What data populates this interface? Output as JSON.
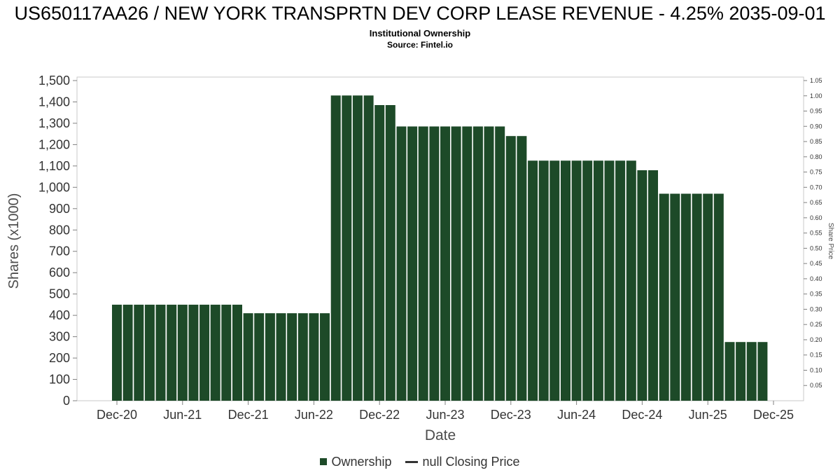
{
  "chart_data": {
    "type": "bar",
    "title": "US650117AA26 / NEW YORK TRANSPRTN DEV CORP LEASE REVENUE - 4.25% 2035-09-01",
    "subtitle": "Institutional Ownership",
    "source": "Source: Fintel.io",
    "xlabel": "Date",
    "ylabel_left": "Shares (x1000)",
    "ylabel_right": "Share Price",
    "bar_color": "#1d4a28",
    "grid": false,
    "legend_position": "bottom",
    "y_left_axis": {
      "min": 0,
      "max": 1500,
      "step": 100,
      "tick_labels": [
        "0",
        "100",
        "200",
        "300",
        "400",
        "500",
        "600",
        "700",
        "800",
        "900",
        "1,000",
        "1,100",
        "1,200",
        "1,300",
        "1,400",
        "1,500"
      ]
    },
    "y_right_axis": {
      "min": 0,
      "max": 1.05,
      "step": 0.05,
      "tick_labels": [
        "0.05",
        "0.10",
        "0.15",
        "0.20",
        "0.25",
        "0.30",
        "0.35",
        "0.40",
        "0.45",
        "0.50",
        "0.55",
        "0.60",
        "0.65",
        "0.70",
        "0.75",
        "0.80",
        "0.85",
        "0.90",
        "0.95",
        "1.00",
        "1.05"
      ]
    },
    "x_tick_labels": [
      "Dec-20",
      "Jun-21",
      "Dec-21",
      "Jun-22",
      "Dec-22",
      "Jun-23",
      "Dec-23",
      "Jun-24",
      "Dec-24",
      "Jun-25",
      "Dec-25"
    ],
    "x_tick_month_indices": [
      0,
      6,
      12,
      18,
      24,
      30,
      36,
      42,
      48,
      54,
      60
    ],
    "categories": [
      "Dec-20",
      "Jan-21",
      "Feb-21",
      "Mar-21",
      "Apr-21",
      "May-21",
      "Jun-21",
      "Jul-21",
      "Aug-21",
      "Sep-21",
      "Oct-21",
      "Nov-21",
      "Dec-21",
      "Jan-22",
      "Feb-22",
      "Mar-22",
      "Apr-22",
      "May-22",
      "Jun-22",
      "Jul-22",
      "Aug-22",
      "Sep-22",
      "Oct-22",
      "Nov-22",
      "Dec-22",
      "Jan-23",
      "Feb-23",
      "Mar-23",
      "Apr-23",
      "May-23",
      "Jun-23",
      "Jul-23",
      "Aug-23",
      "Sep-23",
      "Oct-23",
      "Nov-23",
      "Dec-23",
      "Jan-24",
      "Feb-24",
      "Mar-24",
      "Apr-24",
      "May-24",
      "Jun-24",
      "Jul-24",
      "Aug-24",
      "Sep-24",
      "Oct-24",
      "Nov-24",
      "Dec-24",
      "Jan-25",
      "Feb-25",
      "Mar-25",
      "Apr-25",
      "May-25",
      "Jun-25",
      "Jul-25",
      "Aug-25",
      "Sep-25",
      "Oct-25",
      "Nov-25"
    ],
    "series": [
      {
        "name": "Ownership",
        "type": "bar",
        "values": [
          450,
          450,
          450,
          450,
          450,
          450,
          450,
          450,
          450,
          450,
          450,
          450,
          410,
          410,
          410,
          410,
          410,
          410,
          410,
          410,
          1430,
          1430,
          1430,
          1430,
          1385,
          1385,
          1285,
          1285,
          1285,
          1285,
          1285,
          1285,
          1285,
          1285,
          1285,
          1285,
          1240,
          1240,
          1125,
          1125,
          1125,
          1125,
          1125,
          1125,
          1125,
          1125,
          1125,
          1125,
          1080,
          1080,
          970,
          970,
          970,
          970,
          970,
          970,
          275,
          275,
          275,
          275
        ]
      },
      {
        "name": "null Closing Price",
        "type": "line",
        "values": []
      }
    ]
  }
}
